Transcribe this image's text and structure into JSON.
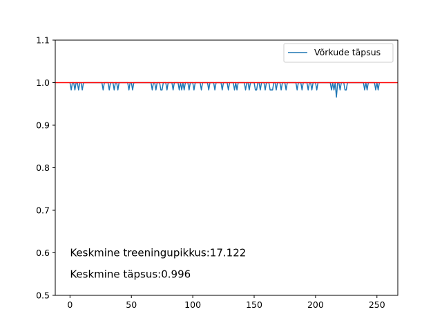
{
  "chart_data": {
    "type": "line",
    "title": "",
    "xlabel": "",
    "ylabel": "",
    "xlim": [
      -12,
      267
    ],
    "ylim": [
      0.5,
      1.1
    ],
    "xticks": [
      0,
      50,
      100,
      150,
      200,
      250
    ],
    "yticks": [
      0.5,
      0.6,
      0.7,
      0.8,
      0.9,
      1.0,
      1.1
    ],
    "xtick_labels": [
      "0",
      "50",
      "100",
      "150",
      "200",
      "250"
    ],
    "ytick_labels": [
      "0.5",
      "0.6",
      "0.7",
      "0.8",
      "0.9",
      "1.0",
      "1.1"
    ],
    "grid": false,
    "legend_position": "top-right",
    "series": [
      {
        "name": "Võrkude täpsus",
        "color": "#1f77b4",
        "baseline": 1.0,
        "n_points": 253,
        "dips": [
          [
            1,
            0.983
          ],
          [
            4,
            0.983
          ],
          [
            7,
            0.983
          ],
          [
            10,
            0.983
          ],
          [
            27,
            0.983
          ],
          [
            32,
            0.983
          ],
          [
            36,
            0.983
          ],
          [
            39,
            0.983
          ],
          [
            48,
            0.983
          ],
          [
            51,
            0.983
          ],
          [
            67,
            0.983
          ],
          [
            70,
            0.983
          ],
          [
            74,
            0.983
          ],
          [
            75,
            0.983
          ],
          [
            79,
            0.983
          ],
          [
            84,
            0.983
          ],
          [
            89,
            0.983
          ],
          [
            91,
            0.983
          ],
          [
            93,
            0.983
          ],
          [
            97,
            0.983
          ],
          [
            101,
            0.983
          ],
          [
            107,
            0.983
          ],
          [
            113,
            0.983
          ],
          [
            118,
            0.983
          ],
          [
            124,
            0.983
          ],
          [
            129,
            0.983
          ],
          [
            134,
            0.983
          ],
          [
            136,
            0.983
          ],
          [
            143,
            0.983
          ],
          [
            146,
            0.983
          ],
          [
            151,
            0.983
          ],
          [
            152,
            0.983
          ],
          [
            155,
            0.983
          ],
          [
            159,
            0.983
          ],
          [
            163,
            0.983
          ],
          [
            164,
            0.983
          ],
          [
            165,
            0.983
          ],
          [
            168,
            0.983
          ],
          [
            172,
            0.983
          ],
          [
            176,
            0.983
          ],
          [
            185,
            0.983
          ],
          [
            189,
            0.983
          ],
          [
            194,
            0.983
          ],
          [
            197,
            0.983
          ],
          [
            201,
            0.983
          ],
          [
            213,
            0.983
          ],
          [
            215,
            0.983
          ],
          [
            217,
            0.966
          ],
          [
            220,
            0.983
          ],
          [
            224,
            0.983
          ],
          [
            225,
            0.983
          ],
          [
            240,
            0.983
          ],
          [
            242,
            0.983
          ],
          [
            249,
            0.983
          ],
          [
            251,
            0.983
          ]
        ]
      }
    ],
    "reference_line": {
      "y": 1.0,
      "color": "#ff0000"
    },
    "annotations": [
      {
        "text": "Keskmine treeningupikkus:17.122",
        "x": 0,
        "y": 0.6
      },
      {
        "text": "Keskmine täpsus:0.996",
        "x": 0,
        "y": 0.55
      }
    ]
  }
}
